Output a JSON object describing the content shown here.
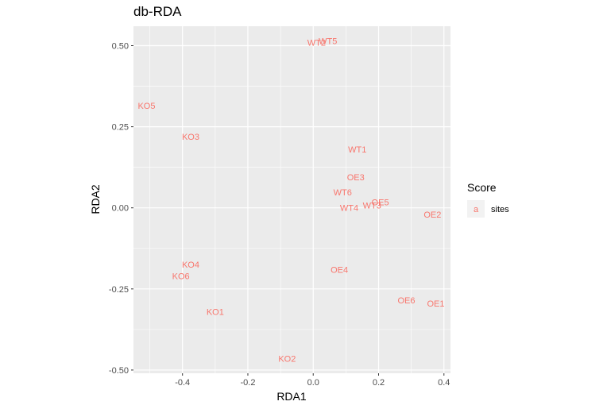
{
  "chart_data": {
    "type": "scatter",
    "title": "db-RDA",
    "xlabel": "RDA1",
    "ylabel": "RDA2",
    "xlim": [
      -0.55,
      0.42
    ],
    "ylim": [
      -0.51,
      0.56
    ],
    "x_ticks": [
      -0.4,
      -0.2,
      0.0,
      0.2,
      0.4
    ],
    "x_tick_labels": [
      "-0.4",
      "-0.2",
      "0.0",
      "0.2",
      "0.4"
    ],
    "y_ticks": [
      -0.5,
      -0.25,
      0.0,
      0.25,
      0.5
    ],
    "y_tick_labels": [
      "-0.50",
      "-0.25",
      "0.00",
      "0.25",
      "0.50"
    ],
    "grid": true,
    "label_color": "#f8766d",
    "panel_color": "#ebebeb",
    "legend": {
      "title": "Score",
      "placement": "right",
      "key_glyph": "a",
      "entries": [
        "sites"
      ]
    },
    "series": [
      {
        "name": "sites",
        "points": [
          {
            "label": "WT2",
            "x": 0.01,
            "y": 0.51
          },
          {
            "label": "WT5",
            "x": 0.045,
            "y": 0.515
          },
          {
            "label": "KO5",
            "x": -0.51,
            "y": 0.315
          },
          {
            "label": "KO3",
            "x": -0.375,
            "y": 0.22
          },
          {
            "label": "WT1",
            "x": 0.135,
            "y": 0.18
          },
          {
            "label": "OE3",
            "x": 0.13,
            "y": 0.095
          },
          {
            "label": "WT6",
            "x": 0.09,
            "y": 0.048
          },
          {
            "label": "OE5",
            "x": 0.205,
            "y": 0.018
          },
          {
            "label": "WT3",
            "x": 0.18,
            "y": 0.008
          },
          {
            "label": "WT4",
            "x": 0.11,
            "y": 0.0
          },
          {
            "label": "OE2",
            "x": 0.365,
            "y": -0.02
          },
          {
            "label": "KO4",
            "x": -0.375,
            "y": -0.175
          },
          {
            "label": "KO6",
            "x": -0.405,
            "y": -0.21
          },
          {
            "label": "OE4",
            "x": 0.08,
            "y": -0.19
          },
          {
            "label": "OE6",
            "x": 0.285,
            "y": -0.285
          },
          {
            "label": "OE1",
            "x": 0.375,
            "y": -0.295
          },
          {
            "label": "KO1",
            "x": -0.3,
            "y": -0.32
          },
          {
            "label": "KO2",
            "x": -0.08,
            "y": -0.465
          }
        ]
      }
    ]
  }
}
